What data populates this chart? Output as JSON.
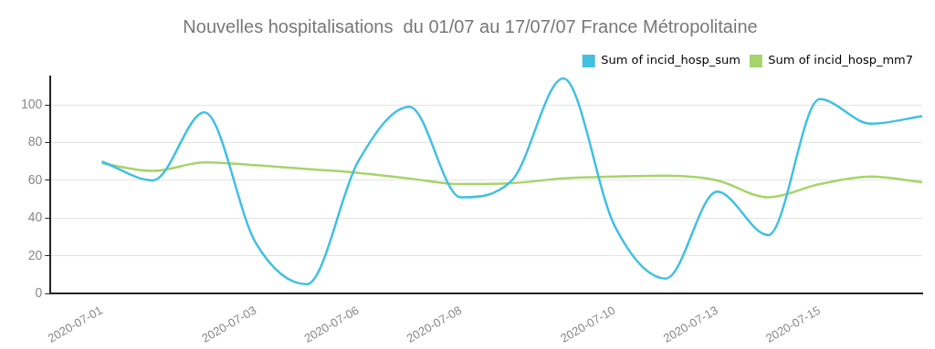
{
  "chart_data": {
    "type": "line",
    "title": "Nouvelles hospitalisations  du 01/07 au 17/07/07 France Métropolitaine",
    "categories": [
      null,
      "2020-07-01",
      null,
      null,
      "2020-07-03",
      null,
      "2020-07-06",
      null,
      "2020-07-08",
      null,
      null,
      "2020-07-10",
      null,
      "2020-07-13",
      null,
      "2020-07-15",
      null,
      null
    ],
    "series": [
      {
        "name": "Sum of incid_hosp_sum",
        "color": "#41c0e2",
        "values": [
          null,
          70,
          60,
          96,
          27,
          5,
          70,
          99,
          51,
          60,
          114,
          36,
          8,
          54,
          31,
          103,
          90,
          94
        ]
      },
      {
        "name": "Sum of incid_hosp_mm7",
        "color": "#a6d46a",
        "values": [
          null,
          69,
          65,
          69.5,
          68,
          66,
          64,
          61,
          58,
          58.5,
          61,
          62,
          62.5,
          60,
          51,
          58,
          62,
          59
        ]
      }
    ],
    "ylim": [
      0,
      115
    ],
    "yticks": [
      0,
      20,
      40,
      60,
      80,
      100
    ],
    "grid": "y",
    "legend": "top right",
    "marker": "none",
    "line_style": "solid"
  }
}
